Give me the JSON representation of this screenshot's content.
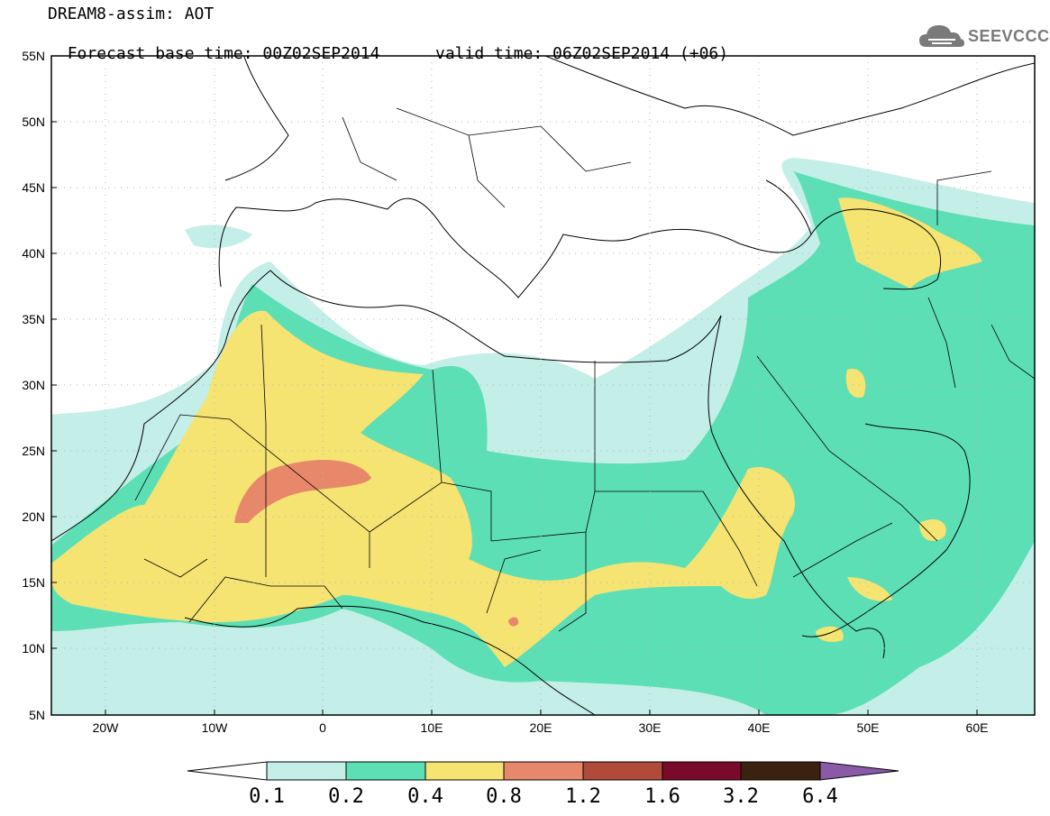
{
  "header": {
    "line1": "DREAM8-assim: AOT",
    "line2_base": "Forecast base time: 00Z02SEP2014",
    "line2_valid": "valid time: 06Z02SEP2014 (+06)"
  },
  "logo": {
    "text": "SEEVCCC",
    "icon": "cloud-logo-icon",
    "color": "#7a7a7a"
  },
  "map": {
    "lat_labels": [
      "55N",
      "50N",
      "45N",
      "40N",
      "35N",
      "30N",
      "25N",
      "20N",
      "15N",
      "10N",
      "5N"
    ],
    "lon_labels": [
      "20W",
      "10W",
      "0",
      "10E",
      "20E",
      "30E",
      "40E",
      "50E",
      "60E"
    ],
    "extent": {
      "lon_min": -25,
      "lon_max": 65,
      "lat_min": 5,
      "lat_max": 55
    }
  },
  "colorbar": {
    "labels": [
      "0.1",
      "0.2",
      "0.4",
      "0.8",
      "1.2",
      "1.6",
      "3.2",
      "6.4"
    ],
    "colors": [
      "#ffffff",
      "#c4eee8",
      "#5ddfb6",
      "#f5e372",
      "#e8886a",
      "#b04a3a",
      "#7a0a2c",
      "#3b2210",
      "#8a5aa8"
    ]
  }
}
